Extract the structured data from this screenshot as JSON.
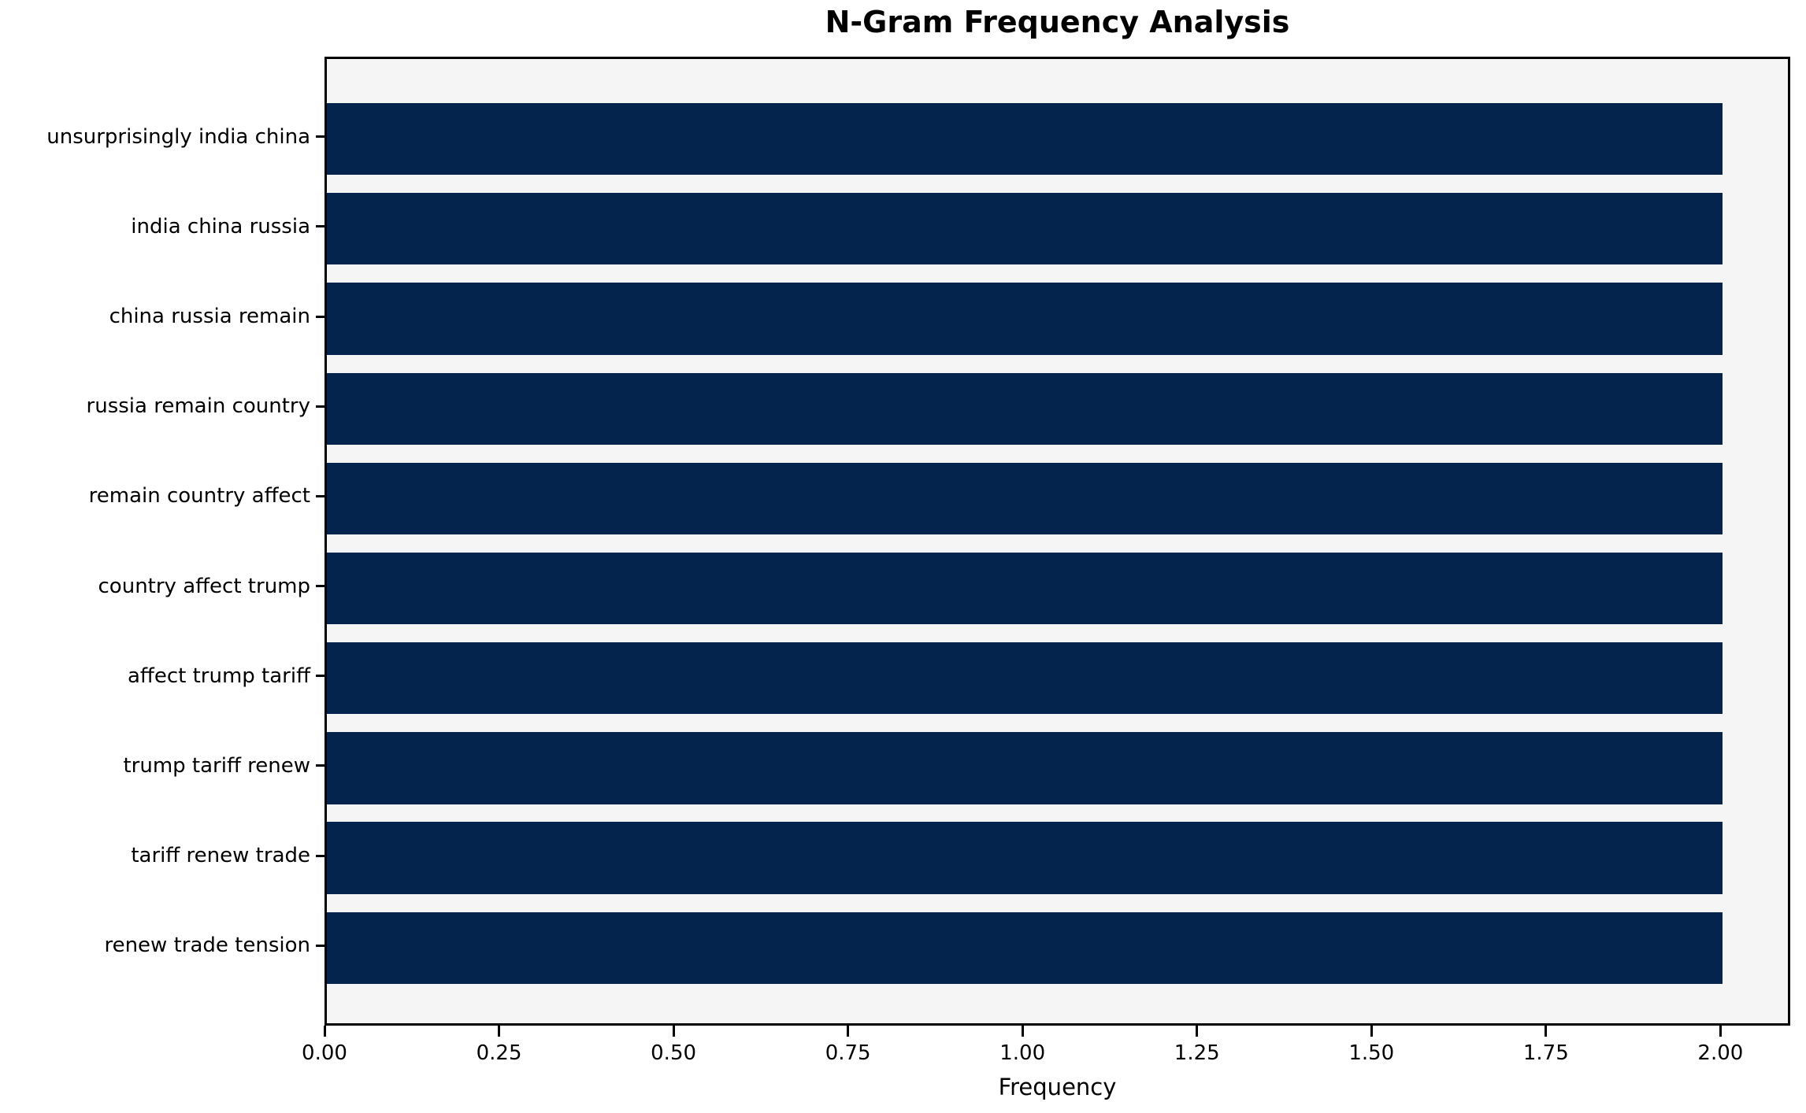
{
  "chart_data": {
    "type": "bar",
    "orientation": "horizontal",
    "title": "N-Gram Frequency Analysis",
    "xlabel": "Frequency",
    "ylabel": "",
    "categories": [
      "unsurprisingly india china",
      "india china russia",
      "china russia remain",
      "russia remain country",
      "remain country affect",
      "country affect trump",
      "affect trump tariff",
      "trump tariff renew",
      "tariff renew trade",
      "renew trade tension"
    ],
    "values": [
      2,
      2,
      2,
      2,
      2,
      2,
      2,
      2,
      2,
      2
    ],
    "xlim": [
      0,
      2.1
    ],
    "x_ticks": [
      0,
      0.25,
      0.5,
      0.75,
      1.0,
      1.25,
      1.5,
      1.75,
      2.0
    ],
    "x_tick_labels": [
      "0.00",
      "0.25",
      "0.50",
      "0.75",
      "1.00",
      "1.25",
      "1.50",
      "1.75",
      "2.00"
    ],
    "grid": false,
    "legend": null,
    "colors": {
      "bar": "#04234d",
      "plot_background": "#f5f5f5",
      "figure_background": "#ffffff",
      "axis": "#000000",
      "text": "#000000"
    }
  }
}
